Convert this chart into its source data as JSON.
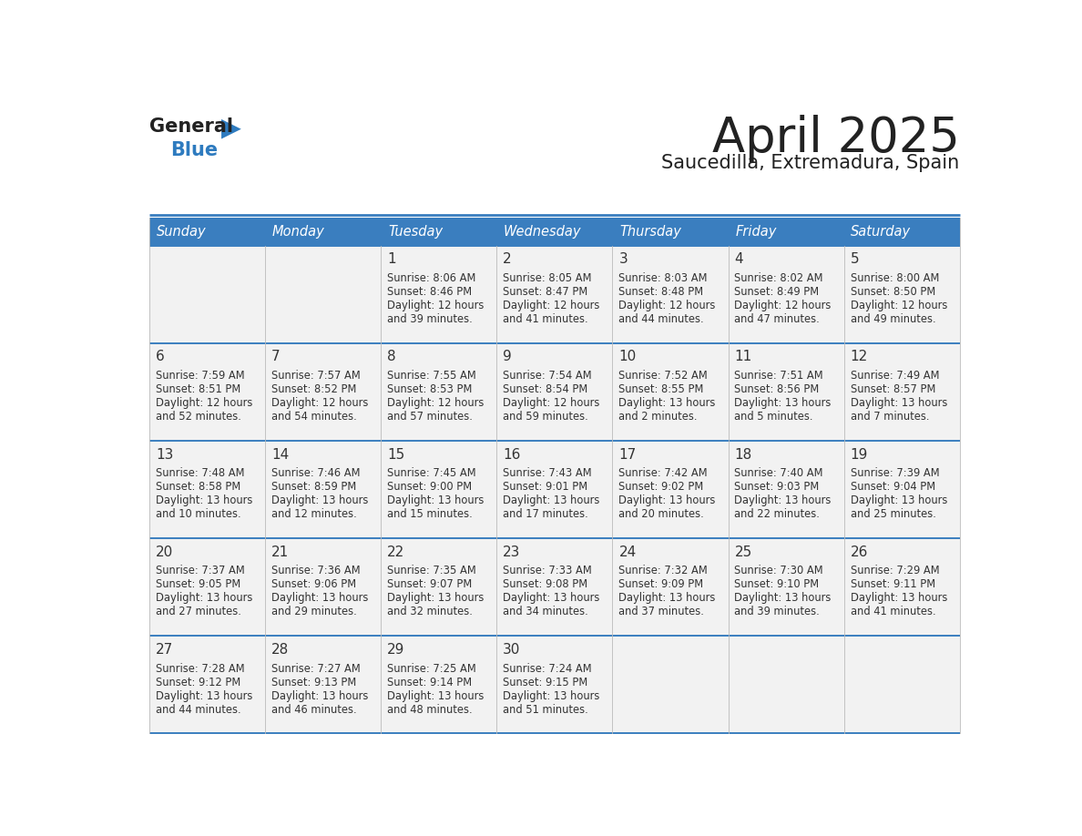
{
  "title": "April 2025",
  "subtitle": "Saucedilla, Extremadura, Spain",
  "days_of_week": [
    "Sunday",
    "Monday",
    "Tuesday",
    "Wednesday",
    "Thursday",
    "Friday",
    "Saturday"
  ],
  "header_bg": "#3A7EBF",
  "header_text": "#FFFFFF",
  "cell_bg": "#F2F2F2",
  "divider_color": "#3A7EBF",
  "text_color": "#333333",
  "title_color": "#222222",
  "logo_general_color": "#222222",
  "logo_blue_color": "#2E7BBF",
  "weeks": [
    [
      {
        "day": "",
        "sunrise": "",
        "sunset": "",
        "daylight": ""
      },
      {
        "day": "",
        "sunrise": "",
        "sunset": "",
        "daylight": ""
      },
      {
        "day": "1",
        "sunrise": "8:06 AM",
        "sunset": "8:46 PM",
        "daylight_h": "12",
        "daylight_m": "39"
      },
      {
        "day": "2",
        "sunrise": "8:05 AM",
        "sunset": "8:47 PM",
        "daylight_h": "12",
        "daylight_m": "41"
      },
      {
        "day": "3",
        "sunrise": "8:03 AM",
        "sunset": "8:48 PM",
        "daylight_h": "12",
        "daylight_m": "44"
      },
      {
        "day": "4",
        "sunrise": "8:02 AM",
        "sunset": "8:49 PM",
        "daylight_h": "12",
        "daylight_m": "47"
      },
      {
        "day": "5",
        "sunrise": "8:00 AM",
        "sunset": "8:50 PM",
        "daylight_h": "12",
        "daylight_m": "49"
      }
    ],
    [
      {
        "day": "6",
        "sunrise": "7:59 AM",
        "sunset": "8:51 PM",
        "daylight_h": "12",
        "daylight_m": "52"
      },
      {
        "day": "7",
        "sunrise": "7:57 AM",
        "sunset": "8:52 PM",
        "daylight_h": "12",
        "daylight_m": "54"
      },
      {
        "day": "8",
        "sunrise": "7:55 AM",
        "sunset": "8:53 PM",
        "daylight_h": "12",
        "daylight_m": "57"
      },
      {
        "day": "9",
        "sunrise": "7:54 AM",
        "sunset": "8:54 PM",
        "daylight_h": "12",
        "daylight_m": "59"
      },
      {
        "day": "10",
        "sunrise": "7:52 AM",
        "sunset": "8:55 PM",
        "daylight_h": "13",
        "daylight_m": "2"
      },
      {
        "day": "11",
        "sunrise": "7:51 AM",
        "sunset": "8:56 PM",
        "daylight_h": "13",
        "daylight_m": "5"
      },
      {
        "day": "12",
        "sunrise": "7:49 AM",
        "sunset": "8:57 PM",
        "daylight_h": "13",
        "daylight_m": "7"
      }
    ],
    [
      {
        "day": "13",
        "sunrise": "7:48 AM",
        "sunset": "8:58 PM",
        "daylight_h": "13",
        "daylight_m": "10"
      },
      {
        "day": "14",
        "sunrise": "7:46 AM",
        "sunset": "8:59 PM",
        "daylight_h": "13",
        "daylight_m": "12"
      },
      {
        "day": "15",
        "sunrise": "7:45 AM",
        "sunset": "9:00 PM",
        "daylight_h": "13",
        "daylight_m": "15"
      },
      {
        "day": "16",
        "sunrise": "7:43 AM",
        "sunset": "9:01 PM",
        "daylight_h": "13",
        "daylight_m": "17"
      },
      {
        "day": "17",
        "sunrise": "7:42 AM",
        "sunset": "9:02 PM",
        "daylight_h": "13",
        "daylight_m": "20"
      },
      {
        "day": "18",
        "sunrise": "7:40 AM",
        "sunset": "9:03 PM",
        "daylight_h": "13",
        "daylight_m": "22"
      },
      {
        "day": "19",
        "sunrise": "7:39 AM",
        "sunset": "9:04 PM",
        "daylight_h": "13",
        "daylight_m": "25"
      }
    ],
    [
      {
        "day": "20",
        "sunrise": "7:37 AM",
        "sunset": "9:05 PM",
        "daylight_h": "13",
        "daylight_m": "27"
      },
      {
        "day": "21",
        "sunrise": "7:36 AM",
        "sunset": "9:06 PM",
        "daylight_h": "13",
        "daylight_m": "29"
      },
      {
        "day": "22",
        "sunrise": "7:35 AM",
        "sunset": "9:07 PM",
        "daylight_h": "13",
        "daylight_m": "32"
      },
      {
        "day": "23",
        "sunrise": "7:33 AM",
        "sunset": "9:08 PM",
        "daylight_h": "13",
        "daylight_m": "34"
      },
      {
        "day": "24",
        "sunrise": "7:32 AM",
        "sunset": "9:09 PM",
        "daylight_h": "13",
        "daylight_m": "37"
      },
      {
        "day": "25",
        "sunrise": "7:30 AM",
        "sunset": "9:10 PM",
        "daylight_h": "13",
        "daylight_m": "39"
      },
      {
        "day": "26",
        "sunrise": "7:29 AM",
        "sunset": "9:11 PM",
        "daylight_h": "13",
        "daylight_m": "41"
      }
    ],
    [
      {
        "day": "27",
        "sunrise": "7:28 AM",
        "sunset": "9:12 PM",
        "daylight_h": "13",
        "daylight_m": "44"
      },
      {
        "day": "28",
        "sunrise": "7:27 AM",
        "sunset": "9:13 PM",
        "daylight_h": "13",
        "daylight_m": "46"
      },
      {
        "day": "29",
        "sunrise": "7:25 AM",
        "sunset": "9:14 PM",
        "daylight_h": "13",
        "daylight_m": "48"
      },
      {
        "day": "30",
        "sunrise": "7:24 AM",
        "sunset": "9:15 PM",
        "daylight_h": "13",
        "daylight_m": "51"
      },
      {
        "day": "",
        "sunrise": "",
        "sunset": "",
        "daylight_h": "",
        "daylight_m": ""
      },
      {
        "day": "",
        "sunrise": "",
        "sunset": "",
        "daylight_h": "",
        "daylight_m": ""
      },
      {
        "day": "",
        "sunrise": "",
        "sunset": "",
        "daylight_h": "",
        "daylight_m": ""
      }
    ]
  ]
}
